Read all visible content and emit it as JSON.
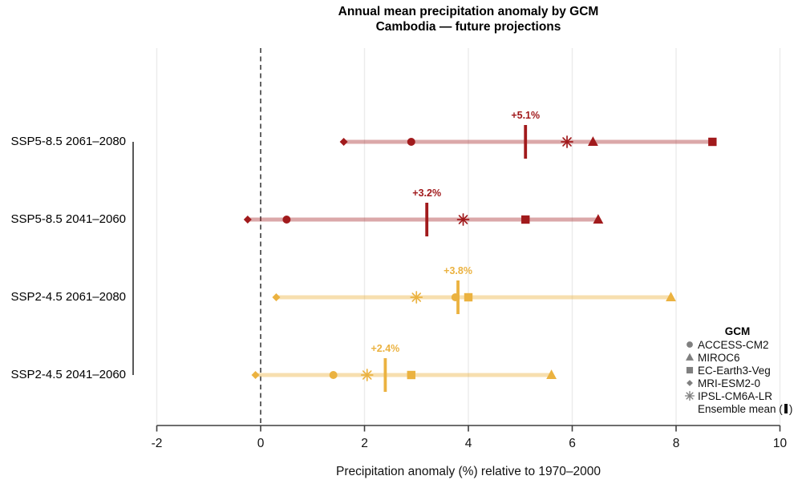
{
  "title": {
    "line1": "Annual mean precipitation anomaly by GCM",
    "line2": "Cambodia — future projections"
  },
  "xlabel": "Precipitation anomaly (%) relative to 1970–2000",
  "colors": {
    "ssp585": "#A11A1C",
    "ssp585_line": "rgba(161,26,28,0.38)",
    "ssp245": "#EBB240",
    "ssp245_line": "rgba(235,178,64,0.42)",
    "grid": "#EBEBEB",
    "axis": "#3E3E3E",
    "zero_line": "#3E3E3E",
    "legend_marker": "#7F7F7F"
  },
  "legend": {
    "title": "GCM",
    "items": [
      {
        "marker": "circle",
        "label": "ACCESS-CM2"
      },
      {
        "marker": "triangle",
        "label": "MIROC6"
      },
      {
        "marker": "square",
        "label": "EC-Earth3-Veg"
      },
      {
        "marker": "diamond",
        "label": "MRI-ESM2-0"
      },
      {
        "marker": "asterisk",
        "label": "IPSL-CM6A-LR"
      }
    ],
    "ensemble_item": {
      "prefix": "Ensemble mean (",
      "suffix": ")"
    }
  },
  "chart_data": {
    "type": "scatter",
    "subtype": "range-dot-plot",
    "title": "Annual mean precipitation anomaly by GCM — Cambodia, future projections",
    "xlabel": "Precipitation anomaly (%) relative to 1970–2000",
    "xlim": [
      -2,
      10
    ],
    "x_ticks": [
      -2,
      0,
      2,
      4,
      6,
      8,
      10
    ],
    "zero_reference_line": 0,
    "grid": "vertical-light",
    "legend_position": "bottom-right-inside",
    "gcm_markers": {
      "ACCESS-CM2": "circle",
      "MIROC6": "triangle",
      "EC-Earth3-Veg": "square",
      "MRI-ESM2-0": "diamond",
      "IPSL-CM6A-LR": "asterisk"
    },
    "rows": [
      {
        "label": "SSP5-8.5  2061–2080",
        "scenario": "ssp585",
        "values": {
          "MRI-ESM2-0": 1.6,
          "ACCESS-CM2": 2.9,
          "IPSL-CM6A-LR": 5.9,
          "MIROC6": 6.4,
          "EC-Earth3-Veg": 8.7
        },
        "ensemble_mean": 5.1,
        "annotation": "+5.1%"
      },
      {
        "label": "SSP5-8.5  2041–2060",
        "scenario": "ssp585",
        "values": {
          "MRI-ESM2-0": -0.25,
          "ACCESS-CM2": 0.5,
          "IPSL-CM6A-LR": 3.9,
          "EC-Earth3-Veg": 5.1,
          "MIROC6": 6.5
        },
        "ensemble_mean": 3.2,
        "annotation": "+3.2%"
      },
      {
        "label": "SSP2-4.5  2061–2080",
        "scenario": "ssp245",
        "values": {
          "MRI-ESM2-0": 0.3,
          "IPSL-CM6A-LR": 3.0,
          "ACCESS-CM2": 3.75,
          "EC-Earth3-Veg": 4.0,
          "MIROC6": 7.9
        },
        "ensemble_mean": 3.8,
        "annotation": "+3.8%"
      },
      {
        "label": "SSP2-4.5  2041–2060",
        "scenario": "ssp245",
        "values": {
          "MRI-ESM2-0": -0.1,
          "ACCESS-CM2": 1.4,
          "IPSL-CM6A-LR": 2.05,
          "EC-Earth3-Veg": 2.9,
          "MIROC6": 5.6
        },
        "ensemble_mean": 2.4,
        "annotation": "+2.4%"
      }
    ]
  }
}
